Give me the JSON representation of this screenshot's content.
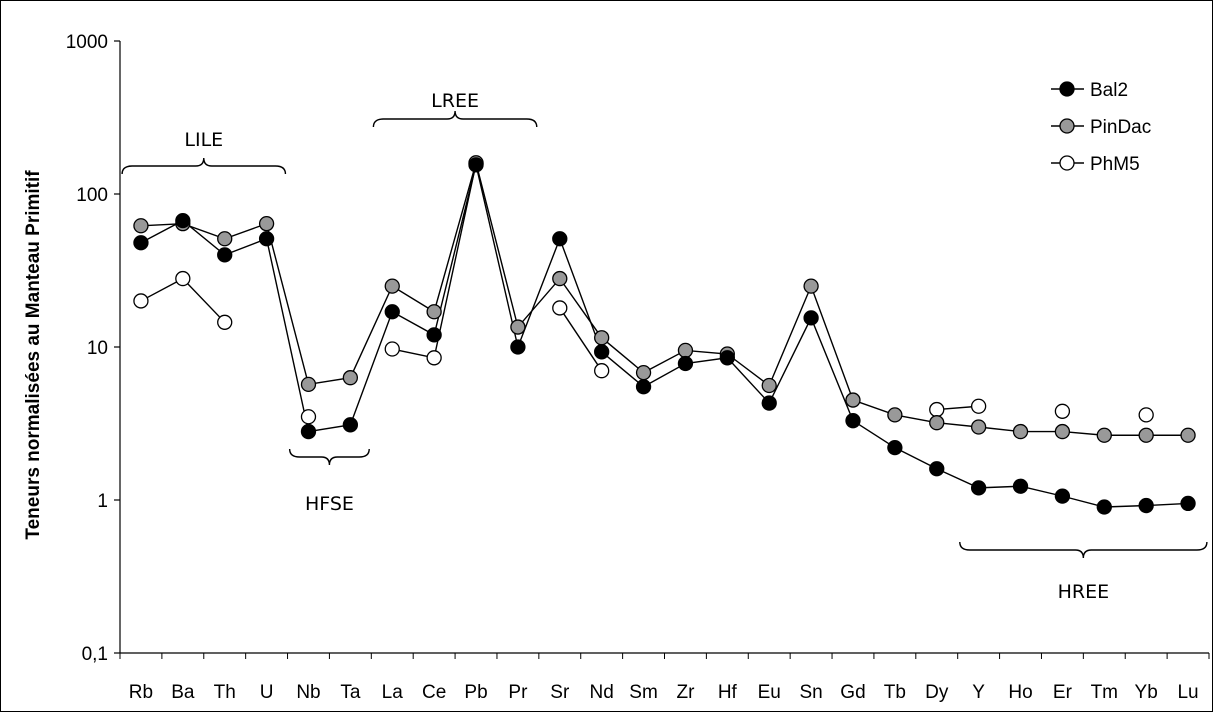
{
  "chart_data": {
    "type": "line",
    "title": "",
    "xlabel": "",
    "ylabel": "Teneurs normalisées au Manteau Primitif",
    "yscale": "log",
    "ylim": [
      0.1,
      1000
    ],
    "ytick_labels": [
      "0,1",
      "1",
      "10",
      "100",
      "1000"
    ],
    "categories": [
      "Rb",
      "Ba",
      "Th",
      "U",
      "Nb",
      "Ta",
      "La",
      "Ce",
      "Pb",
      "Pr",
      "Sr",
      "Nd",
      "Sm",
      "Zr",
      "Hf",
      "Eu",
      "Sn",
      "Gd",
      "Tb",
      "Dy",
      "Y",
      "Ho",
      "Er",
      "Tm",
      "Yb",
      "Lu"
    ],
    "series": [
      {
        "name": "Bal2",
        "marker": "filled-black",
        "color": "#000000",
        "values": [
          48,
          67,
          40,
          51,
          2.8,
          3.1,
          17,
          12,
          155,
          10,
          51,
          9.3,
          5.5,
          7.8,
          8.5,
          4.3,
          15.5,
          3.3,
          2.2,
          1.6,
          1.2,
          1.23,
          1.06,
          0.9,
          0.92,
          0.95
        ]
      },
      {
        "name": "PinDac",
        "marker": "filled-grey",
        "color": "#999999",
        "values": [
          62,
          64,
          51,
          64,
          5.7,
          6.3,
          25,
          17,
          160,
          13.5,
          28,
          11.5,
          6.8,
          9.5,
          9,
          5.6,
          25,
          4.5,
          3.6,
          3.2,
          3.0,
          2.8,
          2.8,
          2.65,
          2.65,
          2.65
        ]
      },
      {
        "name": "PhM5",
        "marker": "open",
        "color": "#ffffff",
        "values": [
          20,
          28,
          14.5,
          null,
          3.5,
          null,
          9.7,
          8.5,
          158,
          null,
          18,
          7,
          null,
          null,
          null,
          null,
          null,
          null,
          null,
          3.9,
          4.1,
          null,
          3.8,
          null,
          3.6,
          null
        ]
      }
    ],
    "annotations": [
      {
        "label": "LILE",
        "span": [
          "Rb",
          "U"
        ],
        "position": "above"
      },
      {
        "label": "HFSE",
        "span": [
          "Nb",
          "Ta"
        ],
        "position": "below"
      },
      {
        "label": "LREE",
        "span": [
          "La",
          "Pr"
        ],
        "position": "above"
      },
      {
        "label": "HREE",
        "span": [
          "Y",
          "Lu"
        ],
        "position": "below"
      }
    ],
    "legend_position": "top-right",
    "grid": false
  }
}
